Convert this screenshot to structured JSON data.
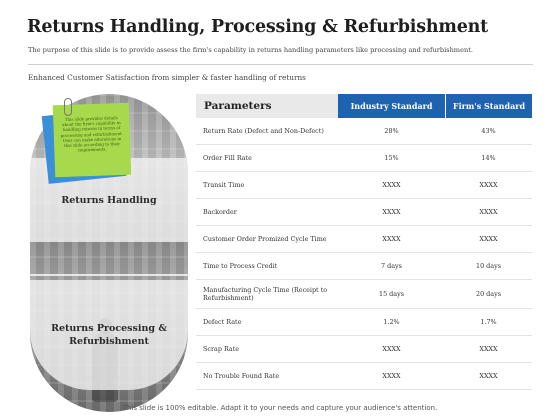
{
  "slide": {
    "title": "Returns Handling, Processing & Refurbishment",
    "subtitle": "The purpose of this slide is to provide assess the firm's capability in returns handling parameters  like processing and refurbishment.",
    "tagline": "Enhanced Customer Satisfaction from simpler & faster handling of returns"
  },
  "capsule": {
    "top_label": "Returns Handling",
    "bottom_label_line1": "Returns Processing &",
    "bottom_label_line2": "Refurbishment"
  },
  "note": {
    "text": "This slide provides details about the firm's capability in handling returns in terms of processing and refurbishment. User can make alterations in this slide according to their requirements."
  },
  "table": {
    "headers": [
      "Parameters",
      "Industry Standard",
      "Firm's Standard"
    ],
    "rows": [
      {
        "param": "Return Rate (Defect and Non-Defect)",
        "industry": "28%",
        "firm": "43%"
      },
      {
        "param": "Order Fill Rate",
        "industry": "15%",
        "firm": "14%"
      },
      {
        "param": "Transit Time",
        "industry": "XXXX",
        "firm": "XXXX"
      },
      {
        "param": "Backorder",
        "industry": "XXXX",
        "firm": "XXXX"
      },
      {
        "param": "Customer Order Promized Cycle Time",
        "industry": "XXXX",
        "firm": "XXXX"
      },
      {
        "param": "Time to Process Credit",
        "industry": "7 days",
        "firm": "10 days"
      },
      {
        "param": "Manufacturing  Cycle Time (Receipt to Refurbishment)",
        "industry": "15 days",
        "firm": "20 days"
      },
      {
        "param": "Defect Rate",
        "industry": "1.2%",
        "firm": "1.7%"
      },
      {
        "param": "Scrap Rate",
        "industry": "XXXX",
        "firm": "XXXX"
      },
      {
        "param": "No Trouble Found Rate",
        "industry": "XXXX",
        "firm": "XXXX"
      }
    ]
  },
  "footer": {
    "text": "This slide is 100% editable. Adapt it to your needs and capture your audience's attention."
  }
}
